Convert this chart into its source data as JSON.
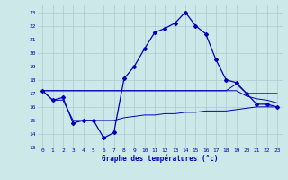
{
  "title": "Graphe des températures (°c)",
  "bg_color": "#cce8e8",
  "grid_color": "#aacccc",
  "line_color": "#0000bb",
  "xlim": [
    -0.5,
    23.5
  ],
  "ylim": [
    13,
    23.5
  ],
  "yticks": [
    13,
    14,
    15,
    16,
    17,
    18,
    19,
    20,
    21,
    22,
    23
  ],
  "xticks": [
    0,
    1,
    2,
    3,
    4,
    5,
    6,
    7,
    8,
    9,
    10,
    11,
    12,
    13,
    14,
    15,
    16,
    17,
    18,
    19,
    20,
    21,
    22,
    23
  ],
  "curve1_x": [
    0,
    1,
    2,
    3,
    4,
    5,
    6,
    7,
    8,
    9,
    10,
    11,
    12,
    13,
    14,
    15,
    16,
    17,
    18,
    19,
    20,
    21,
    22,
    23
  ],
  "curve1_y": [
    17.2,
    16.5,
    16.7,
    14.8,
    15.0,
    15.0,
    13.7,
    14.1,
    18.1,
    19.0,
    20.3,
    21.5,
    21.8,
    22.2,
    23.0,
    22.0,
    21.4,
    19.5,
    18.0,
    17.8,
    17.0,
    16.2,
    16.2,
    16.0
  ],
  "curve2_x": [
    0,
    1,
    2,
    3,
    4,
    5,
    6,
    7,
    8,
    9,
    10,
    11,
    12,
    13,
    14,
    15,
    16,
    17,
    18,
    19,
    20,
    21,
    22,
    23
  ],
  "curve2_y": [
    17.2,
    17.2,
    17.2,
    17.2,
    17.2,
    17.2,
    17.2,
    17.2,
    17.2,
    17.2,
    17.2,
    17.2,
    17.2,
    17.2,
    17.2,
    17.2,
    17.2,
    17.2,
    17.2,
    17.7,
    17.0,
    17.0,
    17.0,
    17.0
  ],
  "curve3_x": [
    0,
    1,
    2,
    3,
    4,
    5,
    6,
    7,
    8,
    9,
    10,
    11,
    12,
    13,
    14,
    15,
    16,
    17,
    18,
    19,
    20,
    21,
    22,
    23
  ],
  "curve3_y": [
    17.2,
    17.2,
    17.2,
    17.2,
    17.2,
    17.2,
    17.2,
    17.2,
    17.2,
    17.2,
    17.2,
    17.2,
    17.2,
    17.2,
    17.2,
    17.2,
    17.2,
    17.2,
    17.2,
    17.2,
    16.8,
    16.6,
    16.5,
    16.3
  ],
  "curve4_x": [
    0,
    1,
    2,
    3,
    4,
    5,
    6,
    7,
    8,
    9,
    10,
    11,
    12,
    13,
    14,
    15,
    16,
    17,
    18,
    19,
    20,
    21,
    22,
    23
  ],
  "curve4_y": [
    17.2,
    16.5,
    16.5,
    15.0,
    15.0,
    15.0,
    15.0,
    15.0,
    15.2,
    15.3,
    15.4,
    15.4,
    15.5,
    15.5,
    15.6,
    15.6,
    15.7,
    15.7,
    15.7,
    15.8,
    15.9,
    16.0,
    16.0,
    16.0
  ]
}
